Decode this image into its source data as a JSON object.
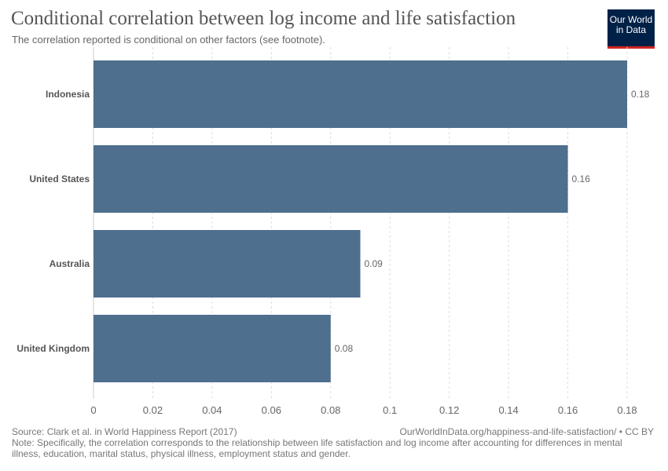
{
  "header": {
    "title": "Conditional correlation between log income and life satisfaction",
    "subtitle": "The correlation reported is conditional on other factors (see footnote).",
    "logo_line1": "Our World",
    "logo_line2": "in Data"
  },
  "footer": {
    "source": "Source: Clark et al. in World Happiness Report (2017)",
    "credit": "OurWorldInData.org/happiness-and-life-satisfaction/ • CC BY",
    "note": "Note: Specifically, the correlation corresponds to the relationship between life satisfaction and log income after accounting for differences in mental illness, education, marital status, physical illness, employment status and gender."
  },
  "colors": {
    "bar": "#4e6f8e",
    "grid": "#dddddd",
    "text": "#555555"
  },
  "chart_data": {
    "type": "bar",
    "orientation": "horizontal",
    "categories": [
      "Indonesia",
      "United States",
      "Australia",
      "United Kingdom"
    ],
    "values": [
      0.18,
      0.16,
      0.09,
      0.08
    ],
    "value_labels": [
      "0.18",
      "0.16",
      "0.09",
      "0.08"
    ],
    "xlim": [
      0,
      0.18
    ],
    "xticks": [
      0,
      0.02,
      0.04,
      0.06,
      0.08,
      0.1,
      0.12,
      0.14,
      0.16,
      0.18
    ],
    "xtick_labels": [
      "0",
      "0.02",
      "0.04",
      "0.06",
      "0.08",
      "0.1",
      "0.12",
      "0.14",
      "0.16",
      "0.18"
    ],
    "grid": true
  }
}
